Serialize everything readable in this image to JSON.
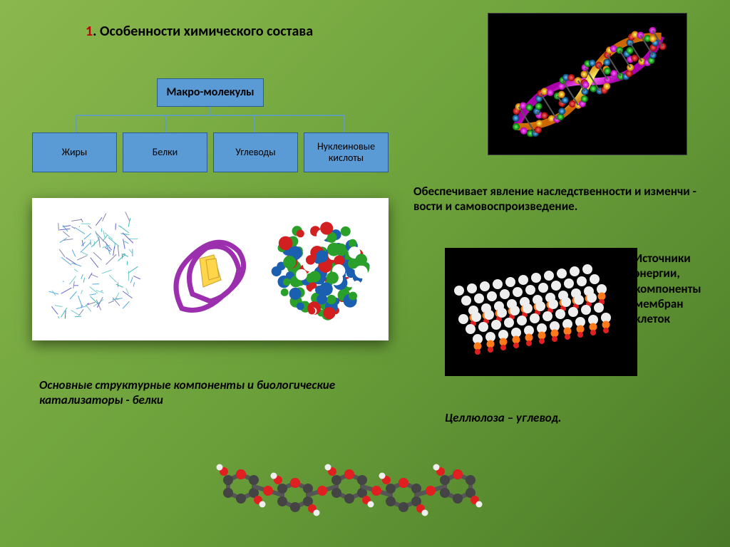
{
  "title_num": "1",
  "title_text": ". Особенности химического состава",
  "hierarchy": {
    "root": "Макро-молекулы",
    "children": [
      "Жиры",
      "Белки",
      "Углеводы",
      "Нуклеиновые кислоты"
    ],
    "box_fill": "#5b9bd5",
    "box_border": "#2e5c8a",
    "connector_color": "#5b9bd5"
  },
  "captions": {
    "heredity": "Обеспечивает явление наследственности и изменчи - вости и самовоспроизведение.",
    "energy": "Источники энергии, компоненты мембран клеток",
    "proteins": "Основные структурные компоненты и биологические катализаторы - белки",
    "cellulose": "Целлюлоза – углевод."
  },
  "image_placeholders": {
    "dna": "dna-double-helix",
    "proteins": "protein-structure-models",
    "lipid": "lipid-bilayer-model",
    "cellulose": "cellulose-chain-model"
  },
  "colors": {
    "bg_gradient_start": "#8bb84e",
    "bg_gradient_mid": "#6ba03a",
    "bg_gradient_end": "#4a7a28",
    "title_number": "#c00000",
    "text": "#000000",
    "panel_bg": "#ffffff",
    "dark_bg": "#000000"
  }
}
